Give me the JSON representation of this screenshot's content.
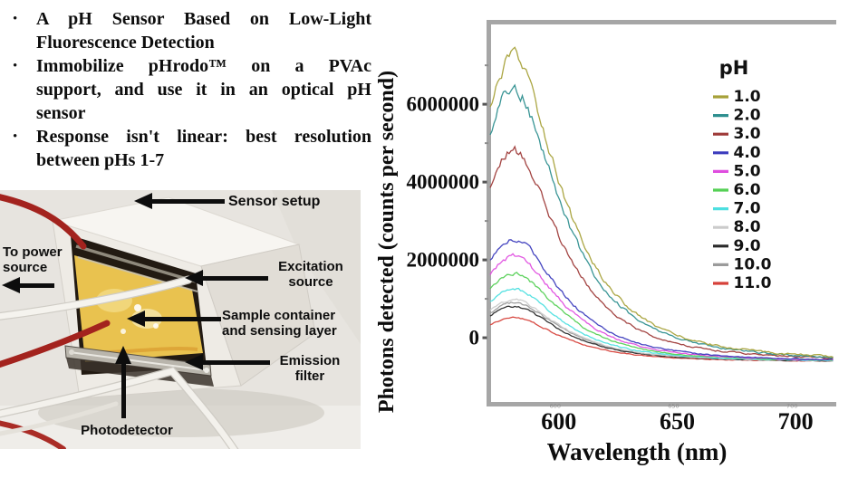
{
  "slide": {
    "bullet_glyph": "•",
    "bullets": [
      {
        "lines": [
          "A pH Sensor Based on Low-Light",
          "Fluorescence Detection"
        ]
      },
      {
        "lines": [
          "Immobilize pHrodo™ on a PVAc",
          "support, and use it in an optical pH",
          "sensor"
        ]
      },
      {
        "lines": [
          "Response isn't linear: best resolution",
          "between pHs 1-7"
        ]
      }
    ]
  },
  "photo": {
    "labels": {
      "sensor_setup": "Sensor setup",
      "to_power_source": "To power source",
      "excitation_source": "Excitation source",
      "sample_container": "Sample container and sensing layer",
      "emission_filter": "Emission filter",
      "photodetector": "Photodetector"
    }
  },
  "chart_data": {
    "type": "line",
    "title": "",
    "xlabel": "Wavelength (nm)",
    "ylabel": "Photons detected (counts per second)",
    "x_range_nm": [
      571,
      716
    ],
    "y_range_counts": [
      -1650000,
      8050000
    ],
    "xticks": [
      600,
      650,
      700
    ],
    "yticks": [
      0,
      2000000,
      4000000,
      6000000
    ],
    "ytick_labels": [
      "0",
      "2000000",
      "4000000",
      "6000000"
    ],
    "grid": false,
    "legend_title": "pH",
    "legend_position": "upper right",
    "peak_wavelength_nm": 581,
    "baseline_counts": -620000,
    "description": "Noisy fluorescence emission spectra peaking near 581-585 nm, decaying to a common baseline (~-600000 counts) by about 660 nm",
    "series": [
      {
        "name": "1.0",
        "color": "#a6a139",
        "peak_counts": 7200000
      },
      {
        "name": "2.0",
        "color": "#2e8f8f",
        "peak_counts": 6400000
      },
      {
        "name": "3.0",
        "color": "#9e3a38",
        "peak_counts": 4800000
      },
      {
        "name": "4.0",
        "color": "#3b3bbd",
        "peak_counts": 2550000
      },
      {
        "name": "5.0",
        "color": "#df4ddf",
        "peak_counts": 2100000
      },
      {
        "name": "6.0",
        "color": "#55d055",
        "peak_counts": 1670000
      },
      {
        "name": "7.0",
        "color": "#4ddfe0",
        "peak_counts": 1250000
      },
      {
        "name": "8.0",
        "color": "#cbcbcb",
        "peak_counts": 970000
      },
      {
        "name": "9.0",
        "color": "#2a2a2a",
        "peak_counts": 800000
      },
      {
        "name": "10.0",
        "color": "#9b9b9b",
        "peak_counts": 900000
      },
      {
        "name": "11.0",
        "color": "#d6413a",
        "peak_counts": 520000
      }
    ]
  }
}
